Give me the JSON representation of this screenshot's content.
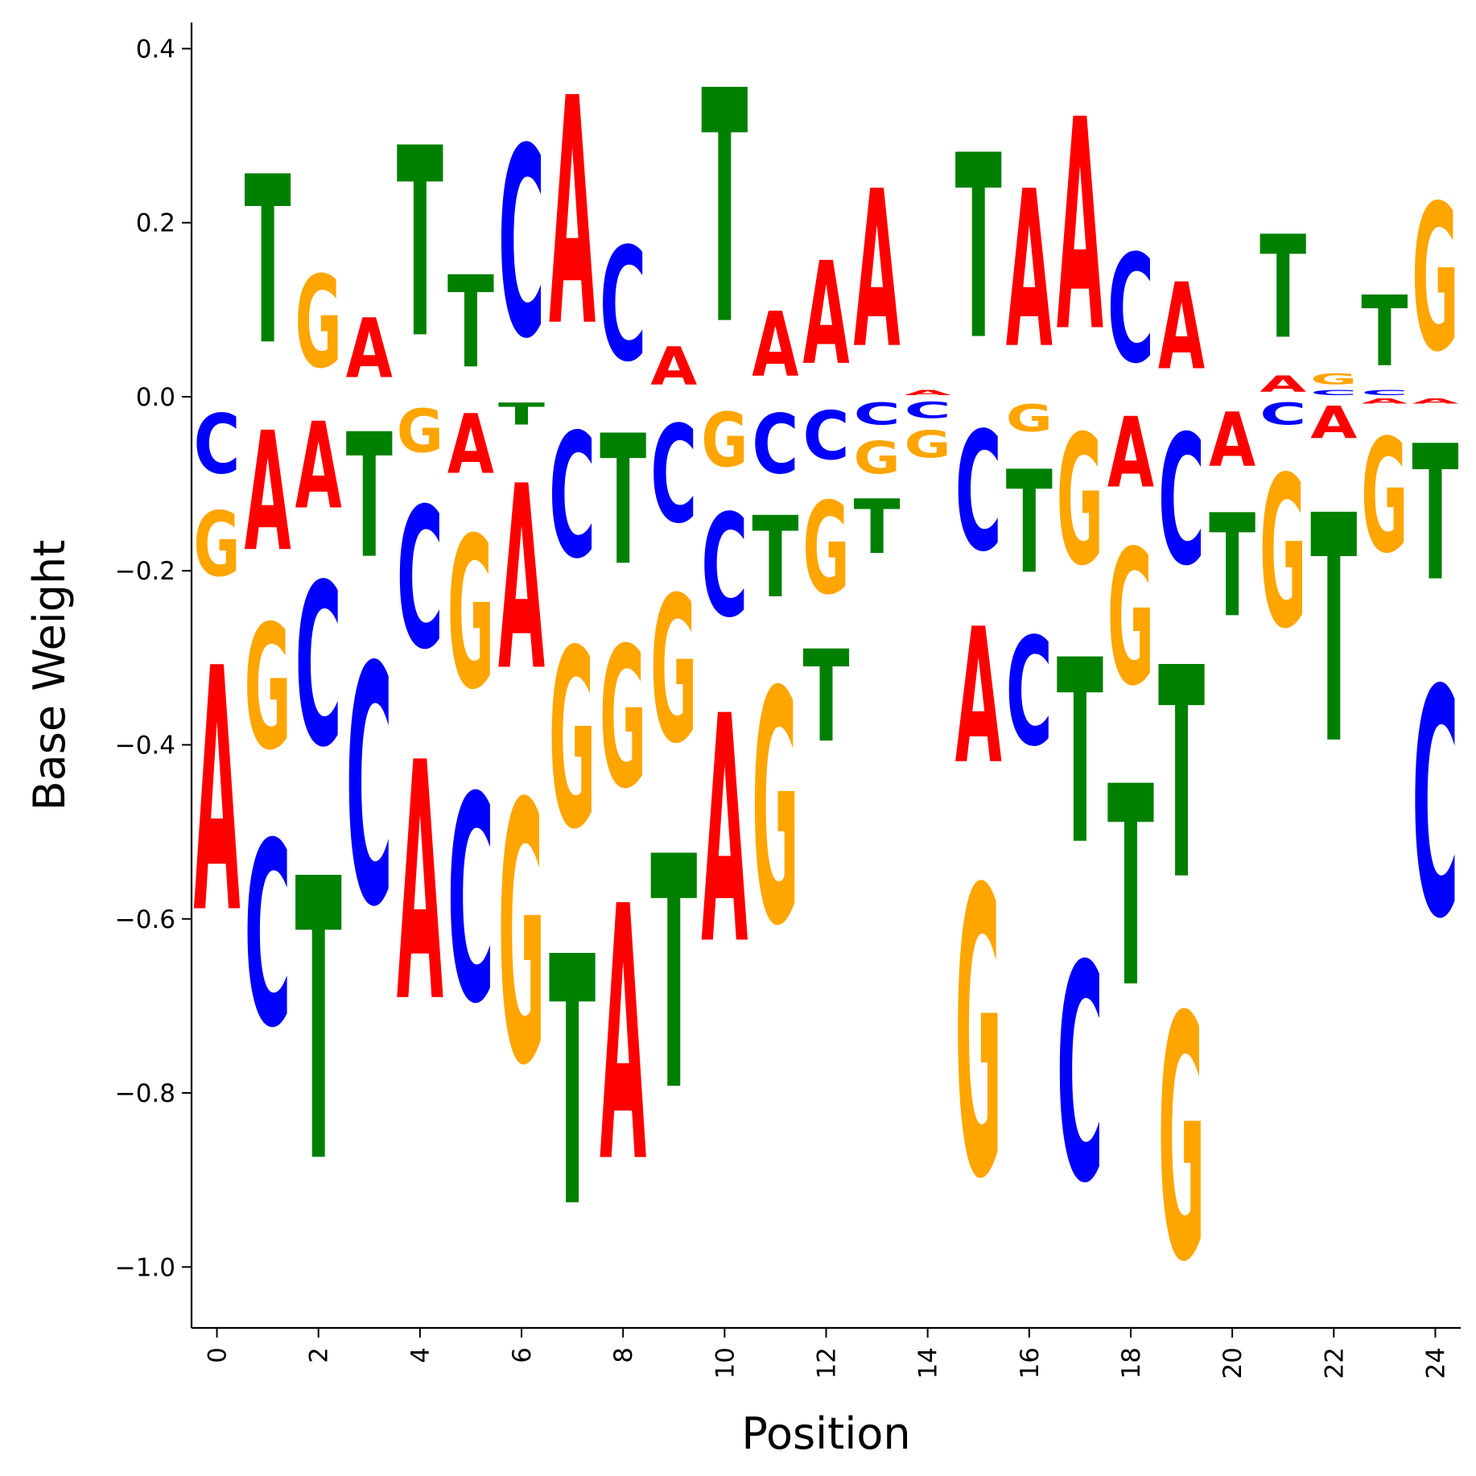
{
  "chart_data": {
    "type": "sequence-logo",
    "xlabel": "Position",
    "ylabel": "Base Weight",
    "xlim": [
      -0.5,
      24.5
    ],
    "ylim": [
      -1.07,
      0.43
    ],
    "x_ticks": [
      0,
      2,
      4,
      6,
      8,
      10,
      12,
      14,
      16,
      18,
      20,
      22,
      24
    ],
    "y_ticks": [
      -1.0,
      -0.8,
      -0.6,
      -0.4,
      -0.2,
      0.0,
      0.2,
      0.4
    ],
    "y_tick_labels": [
      "−1.0",
      "−0.8",
      "−0.6",
      "−0.4",
      "−0.2",
      "0.0",
      "0.2",
      "0.4"
    ],
    "grid": false,
    "colors": {
      "A": "#ff0000",
      "C": "#0000ff",
      "G": "#ffa500",
      "T": "#008000"
    },
    "positions": [
      {
        "pos": 0,
        "A": -0.45,
        "C": -0.11,
        "G": -0.12,
        "T": 0.0
      },
      {
        "pos": 1,
        "A": -0.22,
        "C": -0.34,
        "G": -0.23,
        "T": 0.31
      },
      {
        "pos": 2,
        "A": -0.16,
        "C": -0.3,
        "G": 0.17,
        "T": -0.52
      },
      {
        "pos": 3,
        "A": 0.11,
        "C": -0.44,
        "G": 0.0,
        "T": -0.23
      },
      {
        "pos": 4,
        "A": -0.44,
        "C": -0.26,
        "G": -0.08,
        "T": 0.35
      },
      {
        "pos": 5,
        "A": -0.11,
        "C": -0.38,
        "G": -0.28,
        "T": 0.17
      },
      {
        "pos": 6,
        "A": -0.34,
        "C": 0.35,
        "G": -0.48,
        "T": -0.04
      },
      {
        "pos": 7,
        "A": 0.42,
        "C": -0.23,
        "G": -0.33,
        "T": -0.46
      },
      {
        "pos": 8,
        "A": -0.47,
        "C": 0.21,
        "G": -0.26,
        "T": -0.24
      },
      {
        "pos": 9,
        "A": 0.07,
        "C": -0.18,
        "G": -0.27,
        "T": -0.43
      },
      {
        "pos": 10,
        "A": -0.42,
        "C": -0.19,
        "G": -0.1,
        "T": 0.43
      },
      {
        "pos": 11,
        "A": 0.12,
        "C": -0.11,
        "G": -0.43,
        "T": -0.15
      },
      {
        "pos": 12,
        "A": 0.19,
        "C": -0.09,
        "G": -0.17,
        "T": -0.17
      },
      {
        "pos": 13,
        "A": 0.29,
        "C": -0.04,
        "G": -0.06,
        "T": -0.1
      },
      {
        "pos": 14,
        "A": 0.01,
        "C": -0.03,
        "G": -0.05,
        "T": 0.0
      },
      {
        "pos": 15,
        "A": -0.25,
        "C": -0.22,
        "G": -0.53,
        "T": 0.34
      },
      {
        "pos": 16,
        "A": 0.29,
        "C": -0.2,
        "G": -0.05,
        "T": -0.19
      },
      {
        "pos": 17,
        "A": 0.39,
        "C": -0.4,
        "G": -0.24,
        "T": -0.34
      },
      {
        "pos": 18,
        "A": -0.13,
        "C": 0.2,
        "G": -0.25,
        "T": -0.37
      },
      {
        "pos": 19,
        "A": 0.16,
        "C": -0.24,
        "G": -0.45,
        "T": -0.39
      },
      {
        "pos": 20,
        "A": -0.1,
        "C": 0.0,
        "G": 0.0,
        "T": -0.19
      },
      {
        "pos": 21,
        "A": 0.03,
        "C": -0.04,
        "G": -0.28,
        "T": 0.19
      },
      {
        "pos": 22,
        "A": -0.06,
        "C": 0.01,
        "G": 0.02,
        "T": -0.42
      },
      {
        "pos": 23,
        "A": -0.01,
        "C": 0.01,
        "G": -0.21,
        "T": 0.13
      },
      {
        "pos": 24,
        "A": -0.01,
        "C": -0.42,
        "G": 0.27,
        "T": -0.25
      }
    ]
  }
}
